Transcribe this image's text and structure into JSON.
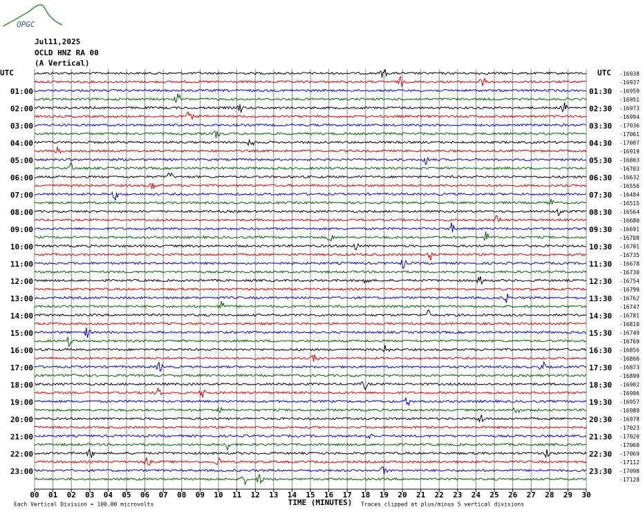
{
  "logo": "OPGC",
  "chart_data": {
    "type": "helicorder",
    "title": "Jul11,2025",
    "subtitle": "OCLD HNZ RA 00",
    "component": "(A Vertical)",
    "left_axis_title": "UTC",
    "right_axis_title": "UTC",
    "xlabel": "TIME (MINUTES)",
    "scale_note": "Each Vertical Division =  100.00 microvolts",
    "clip_note": "Traces clipped at plus/minus 5 vertical divisions",
    "colors": [
      "#000000",
      "#e00000",
      "#0000e0",
      "#006000"
    ],
    "xlim": [
      0,
      30
    ],
    "xticks": [
      {
        "value": 0,
        "label": "00"
      },
      {
        "value": 1,
        "label": "01"
      },
      {
        "value": 2,
        "label": "02"
      },
      {
        "value": 3,
        "label": "03"
      },
      {
        "value": 4,
        "label": "04"
      },
      {
        "value": 5,
        "label": "05"
      },
      {
        "value": 6,
        "label": "06"
      },
      {
        "value": 7,
        "label": "07"
      },
      {
        "value": 8,
        "label": "08"
      },
      {
        "value": 9,
        "label": "09"
      },
      10,
      11,
      12,
      13,
      14,
      15,
      16,
      17,
      18,
      19,
      20,
      21,
      22,
      23,
      24,
      25,
      26,
      27,
      28,
      29,
      30
    ],
    "left_labels": [
      "01:00",
      "02:00",
      "03:00",
      "04:00",
      "05:00",
      "06:00",
      "07:00",
      "08:00",
      "09:00",
      "10:00",
      "11:00",
      "12:00",
      "13:00",
      "14:00",
      "15:00",
      "16:00",
      "17:00",
      "18:00",
      "19:00",
      "20:00",
      "21:00",
      "22:00",
      "23:00"
    ],
    "right_labels": [
      "01:30",
      "02:30",
      "03:30",
      "04:30",
      "05:30",
      "06:30",
      "07:30",
      "08:30",
      "09:30",
      "10:30",
      "11:30",
      "12:30",
      "13:30",
      "14:30",
      "15:30",
      "16:30",
      "17:30",
      "18:30",
      "19:30",
      "20:30",
      "21:30",
      "22:30",
      "23:30"
    ],
    "trace_offsets": [
      -16938,
      -16937,
      -16959,
      -16951,
      -16973,
      -16994,
      -17036,
      -17061,
      -17007,
      -16919,
      -16803,
      -16703,
      -16632,
      -16556,
      -16484,
      -16515,
      -16564,
      -16680,
      -16691,
      -16708,
      -16701,
      -16735,
      -16678,
      -16730,
      -16754,
      -16799,
      -16762,
      -16747,
      -16781,
      -16810,
      -16749,
      -16769,
      -16856,
      -16866,
      -16873,
      -16899,
      -16902,
      -16906,
      -16957,
      -16989,
      -16978,
      -17023,
      -17020,
      -17060,
      -17069,
      -17112,
      -17098,
      -17128
    ]
  }
}
